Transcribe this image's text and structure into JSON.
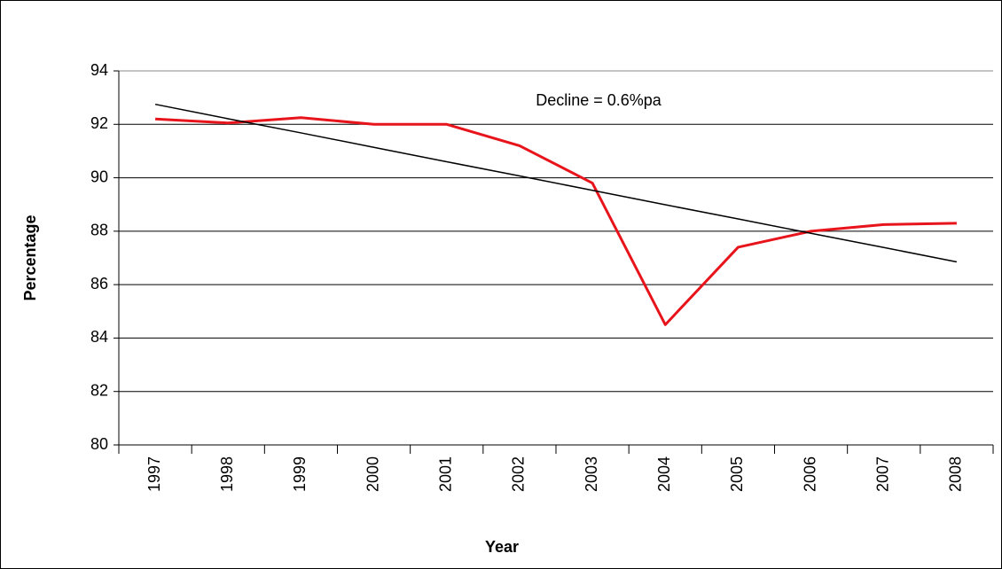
{
  "chart_data": {
    "type": "line",
    "annotation": "Decline = 0.6%pa",
    "x_label": "Year",
    "y_label": "Percentage",
    "categories": [
      "1997",
      "1998",
      "1999",
      "2000",
      "2001",
      "2002",
      "2003",
      "2004",
      "2005",
      "2006",
      "2007",
      "2008"
    ],
    "series": [
      {
        "color": "#e8141b",
        "values": [
          92.2,
          92.05,
          92.25,
          92.0,
          92.0,
          91.2,
          89.8,
          84.5,
          87.4,
          88.0,
          88.25,
          88.3
        ]
      },
      {
        "color": "#000000",
        "values": [
          92.75,
          92.21,
          91.68,
          91.14,
          90.6,
          90.07,
          89.53,
          88.99,
          88.46,
          87.92,
          87.39,
          86.85
        ]
      }
    ],
    "ylim": [
      80,
      94
    ],
    "yticks": [
      80,
      82,
      84,
      86,
      88,
      90,
      92,
      94
    ],
    "grid": true
  }
}
